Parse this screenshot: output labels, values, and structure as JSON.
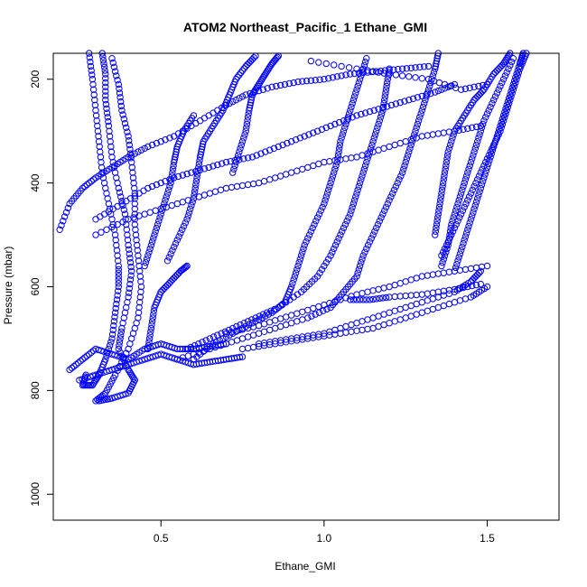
{
  "chart_data": {
    "type": "scatter",
    "title": "ATOM2 Northeast_Pacific_1 Ethane_GMI",
    "xlabel": "Ethane_GMI",
    "ylabel": "Pressure (mbar)",
    "xlim": [
      0.17,
      1.72
    ],
    "ylim": [
      1050,
      150
    ],
    "y_reversed": true,
    "grid": false,
    "legend": "none",
    "marker": "open-circle",
    "color": "#0000ff",
    "x_ticks": [
      {
        "value": 0.5,
        "label": "0.5"
      },
      {
        "value": 1.0,
        "label": "1.0"
      },
      {
        "value": 1.5,
        "label": "1.5"
      }
    ],
    "y_ticks": [
      {
        "value": 200,
        "label": "200"
      },
      {
        "value": 400,
        "label": "400"
      },
      {
        "value": 600,
        "label": "600"
      },
      {
        "value": 800,
        "label": "800"
      },
      {
        "value": 1000,
        "label": "1000"
      }
    ],
    "series": [
      {
        "values": [
          [
            0.28,
            150
          ],
          [
            0.29,
            200
          ],
          [
            0.3,
            260
          ],
          [
            0.31,
            320
          ],
          [
            0.32,
            380
          ],
          [
            0.34,
            440
          ],
          [
            0.36,
            500
          ],
          [
            0.37,
            560
          ],
          [
            0.37,
            600
          ],
          [
            0.36,
            650
          ],
          [
            0.35,
            700
          ],
          [
            0.33,
            740
          ],
          [
            0.31,
            770
          ],
          [
            0.29,
            790
          ],
          [
            0.26,
            790
          ],
          [
            0.27,
            770
          ]
        ]
      },
      {
        "values": [
          [
            0.32,
            150
          ],
          [
            0.33,
            190
          ],
          [
            0.33,
            240
          ],
          [
            0.34,
            290
          ],
          [
            0.35,
            350
          ],
          [
            0.37,
            410
          ],
          [
            0.39,
            460
          ],
          [
            0.4,
            520
          ],
          [
            0.41,
            570
          ],
          [
            0.4,
            620
          ],
          [
            0.38,
            680
          ],
          [
            0.37,
            720
          ],
          [
            0.4,
            760
          ],
          [
            0.42,
            780
          ],
          [
            0.4,
            805
          ],
          [
            0.35,
            815
          ],
          [
            0.31,
            820
          ]
        ]
      },
      {
        "values": [
          [
            0.35,
            160
          ],
          [
            0.37,
            210
          ],
          [
            0.38,
            260
          ],
          [
            0.4,
            310
          ],
          [
            0.41,
            360
          ],
          [
            0.42,
            420
          ],
          [
            0.42,
            480
          ],
          [
            0.43,
            540
          ],
          [
            0.44,
            600
          ],
          [
            0.43,
            660
          ],
          [
            0.4,
            720
          ],
          [
            0.36,
            770
          ],
          [
            0.33,
            805
          ],
          [
            0.3,
            820
          ]
        ]
      },
      {
        "values": [
          [
            0.19,
            490
          ],
          [
            0.22,
            440
          ],
          [
            0.26,
            410
          ],
          [
            0.3,
            390
          ],
          [
            0.35,
            370
          ],
          [
            0.4,
            350
          ],
          [
            0.46,
            330
          ],
          [
            0.54,
            310
          ],
          [
            0.62,
            280
          ],
          [
            0.7,
            250
          ],
          [
            0.76,
            230
          ],
          [
            0.84,
            215
          ],
          [
            0.92,
            205
          ],
          [
            1.0,
            200
          ],
          [
            1.08,
            190
          ],
          [
            1.16,
            185
          ],
          [
            1.24,
            180
          ],
          [
            1.32,
            175
          ]
        ]
      },
      {
        "values": [
          [
            0.3,
            470
          ],
          [
            0.38,
            440
          ],
          [
            0.46,
            410
          ],
          [
            0.54,
            390
          ],
          [
            0.62,
            375
          ],
          [
            0.7,
            360
          ],
          [
            0.78,
            350
          ],
          [
            0.86,
            330
          ],
          [
            0.94,
            310
          ],
          [
            1.02,
            290
          ],
          [
            1.1,
            270
          ],
          [
            1.18,
            255
          ],
          [
            1.26,
            240
          ],
          [
            1.34,
            225
          ],
          [
            1.4,
            210
          ]
        ]
      },
      {
        "values": [
          [
            0.3,
            500
          ],
          [
            0.4,
            470
          ],
          [
            0.5,
            450
          ],
          [
            0.6,
            430
          ],
          [
            0.7,
            410
          ],
          [
            0.8,
            400
          ],
          [
            0.9,
            380
          ],
          [
            1.0,
            360
          ],
          [
            1.1,
            350
          ],
          [
            1.2,
            330
          ],
          [
            1.3,
            310
          ],
          [
            1.4,
            300
          ],
          [
            1.48,
            290
          ]
        ]
      },
      {
        "values": [
          [
            0.72,
            380
          ],
          [
            0.74,
            340
          ],
          [
            0.76,
            300
          ],
          [
            0.77,
            260
          ],
          [
            0.78,
            230
          ],
          [
            0.8,
            210
          ],
          [
            0.82,
            190
          ],
          [
            0.84,
            170
          ],
          [
            0.86,
            155
          ]
        ]
      },
      {
        "values": [
          [
            0.52,
            550
          ],
          [
            0.55,
            510
          ],
          [
            0.58,
            470
          ],
          [
            0.6,
            430
          ],
          [
            0.61,
            390
          ],
          [
            0.62,
            350
          ],
          [
            0.63,
            320
          ],
          [
            0.66,
            290
          ],
          [
            0.69,
            260
          ],
          [
            0.71,
            230
          ],
          [
            0.73,
            200
          ],
          [
            0.76,
            175
          ],
          [
            0.79,
            155
          ]
        ]
      },
      {
        "values": [
          [
            0.45,
            560
          ],
          [
            0.47,
            520
          ],
          [
            0.49,
            480
          ],
          [
            0.51,
            440
          ],
          [
            0.53,
            400
          ],
          [
            0.54,
            360
          ],
          [
            0.55,
            330
          ],
          [
            0.57,
            300
          ],
          [
            0.6,
            270
          ]
        ]
      },
      {
        "values": [
          [
            0.6,
            740
          ],
          [
            0.66,
            710
          ],
          [
            0.72,
            690
          ],
          [
            0.78,
            670
          ],
          [
            0.84,
            650
          ],
          [
            0.88,
            630
          ],
          [
            0.9,
            600
          ],
          [
            0.92,
            560
          ],
          [
            0.94,
            520
          ],
          [
            0.97,
            480
          ],
          [
            1.0,
            440
          ],
          [
            1.02,
            400
          ],
          [
            1.04,
            360
          ],
          [
            1.05,
            320
          ],
          [
            1.07,
            280
          ],
          [
            1.09,
            240
          ],
          [
            1.11,
            200
          ],
          [
            1.13,
            160
          ]
        ]
      },
      {
        "values": [
          [
            0.58,
            720
          ],
          [
            0.65,
            700
          ],
          [
            0.72,
            680
          ],
          [
            0.79,
            660
          ],
          [
            0.86,
            640
          ],
          [
            0.93,
            610
          ],
          [
            0.98,
            580
          ],
          [
            1.02,
            540
          ],
          [
            1.05,
            500
          ],
          [
            1.08,
            460
          ],
          [
            1.1,
            420
          ],
          [
            1.12,
            380
          ],
          [
            1.14,
            340
          ],
          [
            1.16,
            300
          ],
          [
            1.18,
            260
          ],
          [
            1.19,
            220
          ],
          [
            1.2,
            180
          ]
        ]
      },
      {
        "values": [
          [
            0.55,
            740
          ],
          [
            0.65,
            720
          ],
          [
            0.75,
            700
          ],
          [
            0.85,
            680
          ],
          [
            0.95,
            660
          ],
          [
            1.02,
            640
          ],
          [
            1.06,
            610
          ],
          [
            1.1,
            580
          ],
          [
            1.12,
            540
          ],
          [
            1.15,
            500
          ],
          [
            1.18,
            460
          ],
          [
            1.21,
            420
          ],
          [
            1.24,
            380
          ],
          [
            1.26,
            340
          ],
          [
            1.28,
            300
          ],
          [
            1.3,
            260
          ],
          [
            1.32,
            220
          ],
          [
            1.34,
            180
          ],
          [
            1.35,
            150
          ]
        ]
      },
      {
        "values": [
          [
            0.7,
            690
          ],
          [
            0.8,
            675
          ],
          [
            0.9,
            655
          ],
          [
            1.0,
            635
          ],
          [
            1.1,
            615
          ],
          [
            1.2,
            600
          ],
          [
            1.3,
            580
          ],
          [
            1.4,
            570
          ],
          [
            1.5,
            560
          ]
        ]
      },
      {
        "values": [
          [
            0.8,
            710
          ],
          [
            0.9,
            700
          ],
          [
            1.0,
            690
          ],
          [
            1.1,
            670
          ],
          [
            1.2,
            650
          ],
          [
            1.3,
            630
          ],
          [
            1.4,
            610
          ],
          [
            1.45,
            590
          ],
          [
            1.48,
            570
          ]
        ]
      },
      {
        "values": [
          [
            0.75,
            720
          ],
          [
            0.85,
            710
          ],
          [
            0.95,
            700
          ],
          [
            1.05,
            690
          ],
          [
            1.15,
            680
          ],
          [
            1.25,
            660
          ],
          [
            1.35,
            640
          ],
          [
            1.45,
            620
          ],
          [
            1.5,
            600
          ]
        ]
      },
      {
        "values": [
          [
            1.36,
            560
          ],
          [
            1.38,
            520
          ],
          [
            1.39,
            480
          ],
          [
            1.41,
            440
          ],
          [
            1.43,
            400
          ],
          [
            1.45,
            360
          ],
          [
            1.47,
            320
          ],
          [
            1.49,
            280
          ],
          [
            1.52,
            240
          ],
          [
            1.55,
            200
          ],
          [
            1.58,
            160
          ]
        ]
      },
      {
        "values": [
          [
            1.4,
            570
          ],
          [
            1.42,
            530
          ],
          [
            1.44,
            490
          ],
          [
            1.46,
            450
          ],
          [
            1.48,
            410
          ],
          [
            1.5,
            370
          ],
          [
            1.52,
            330
          ],
          [
            1.54,
            290
          ],
          [
            1.56,
            250
          ],
          [
            1.58,
            210
          ],
          [
            1.6,
            170
          ],
          [
            1.61,
            150
          ]
        ]
      },
      {
        "values": [
          [
            1.34,
            500
          ],
          [
            1.35,
            460
          ],
          [
            1.36,
            420
          ],
          [
            1.37,
            380
          ],
          [
            1.38,
            340
          ],
          [
            1.4,
            300
          ],
          [
            1.43,
            270
          ],
          [
            1.46,
            240
          ],
          [
            1.49,
            220
          ],
          [
            1.52,
            190
          ],
          [
            1.55,
            170
          ],
          [
            1.57,
            150
          ]
        ]
      },
      {
        "values": [
          [
            1.36,
            540
          ],
          [
            1.39,
            500
          ],
          [
            1.42,
            460
          ],
          [
            1.45,
            420
          ],
          [
            1.48,
            380
          ],
          [
            1.51,
            340
          ],
          [
            1.54,
            300
          ],
          [
            1.56,
            260
          ],
          [
            1.58,
            220
          ],
          [
            1.6,
            180
          ],
          [
            1.62,
            150
          ]
        ]
      },
      {
        "values": [
          [
            0.22,
            760
          ],
          [
            0.26,
            740
          ],
          [
            0.3,
            720
          ],
          [
            0.35,
            730
          ],
          [
            0.4,
            740
          ],
          [
            0.45,
            720
          ],
          [
            0.5,
            710
          ],
          [
            0.55,
            720
          ],
          [
            0.6,
            720
          ],
          [
            0.65,
            715
          ],
          [
            0.7,
            710
          ]
        ]
      },
      {
        "values": [
          [
            0.25,
            780
          ],
          [
            0.3,
            770
          ],
          [
            0.35,
            760
          ],
          [
            0.4,
            750
          ],
          [
            0.45,
            740
          ],
          [
            0.5,
            730
          ],
          [
            0.55,
            740
          ],
          [
            0.6,
            750
          ],
          [
            0.65,
            745
          ],
          [
            0.7,
            740
          ],
          [
            0.75,
            735
          ]
        ]
      },
      {
        "values": [
          [
            0.46,
            720
          ],
          [
            0.47,
            680
          ],
          [
            0.48,
            640
          ],
          [
            0.5,
            610
          ],
          [
            0.53,
            590
          ],
          [
            0.56,
            570
          ],
          [
            0.58,
            560
          ]
        ]
      },
      {
        "values": [
          [
            1.08,
            625
          ],
          [
            1.14,
            625
          ],
          [
            1.2,
            620
          ],
          [
            1.3,
            615
          ],
          [
            1.4,
            605
          ],
          [
            1.48,
            595
          ]
        ]
      },
      {
        "values": [
          [
            0.96,
            165
          ],
          [
            1.1,
            180
          ],
          [
            1.2,
            190
          ],
          [
            1.32,
            200
          ],
          [
            1.42,
            220
          ],
          [
            1.5,
            210
          ]
        ]
      }
    ]
  }
}
